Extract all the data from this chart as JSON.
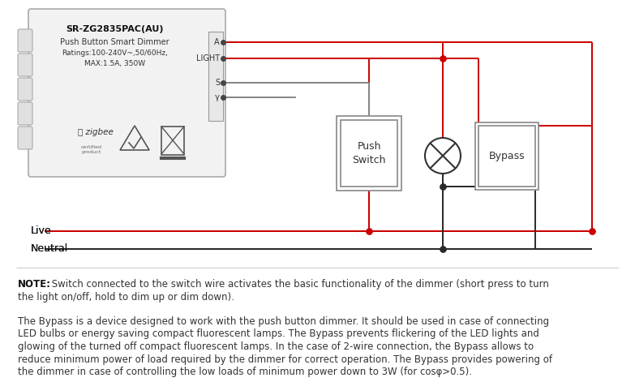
{
  "bg_color": "#ffffff",
  "fig_w": 7.83,
  "fig_h": 4.71,
  "dimmer_label_title": "SR-ZG2835PAC(AU)",
  "dimmer_label_sub1": "Push Button Smart Dimmer",
  "dimmer_label_sub2": "Ratings:100-240V~,50/60Hz,",
  "dimmer_label_sub3": "MAX:1.5A, 350W",
  "live_label": "Live",
  "neutral_label": "Neutral",
  "push_switch_label": "Push\nSwitch",
  "bypass_label": "Bypass",
  "wire_red": "#cc0000",
  "wire_black": "#2a2a2a",
  "wire_gray": "#888888",
  "note_bold": "NOTE:",
  "note_text": " Switch connected to the switch wire activates the basic functionality of the dimmer (short press to turn\nthe light on/off, hold to dim up or dim down).",
  "para_text": "The Bypass is a device designed to work with the push button dimmer. It should be used in case of connecting\nLED bulbs or energy saving compact fluorescent lamps. The Bypass prevents flickering of the LED lights and\nglowing of the turned off compact fluorescent lamps. In the case of 2-wire connection, the Bypass allows to\nreduce minimum power of load required by the dimmer for correct operation. The Bypass provides powering of\nthe dimmer in case of controlling the low loads of minimum power down to 3W (for cosφ>0.5)."
}
